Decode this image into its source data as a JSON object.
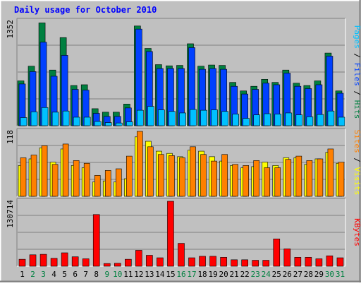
{
  "chart_data": {
    "type": "bar",
    "title": "Daily usage for October 2010",
    "categories": [
      "1",
      "2",
      "3",
      "4",
      "5",
      "6",
      "7",
      "8",
      "9",
      "10",
      "11",
      "12",
      "13",
      "14",
      "15",
      "16",
      "17",
      "18",
      "19",
      "20",
      "21",
      "22",
      "23",
      "24",
      "25",
      "26",
      "27",
      "28",
      "29",
      "30",
      "31"
    ],
    "weekend_days": [
      "2",
      "3",
      "9",
      "10",
      "16",
      "17",
      "23",
      "24",
      "30",
      "31"
    ],
    "panels": [
      {
        "id": "top",
        "ymax": 1352,
        "ymax_label": "1352",
        "axis_label_parts": [
          {
            "text": "Pages",
            "color": "#00c0ff"
          },
          {
            "text": " / ",
            "color": "#000000"
          },
          {
            "text": "Files",
            "color": "#0040ff"
          },
          {
            "text": " / ",
            "color": "#000000"
          },
          {
            "text": "Hits",
            "color": "#008040"
          }
        ],
        "series": [
          {
            "name": "Hits",
            "color": "#008040",
            "values": [
              580,
              770,
              1330,
              720,
              1140,
              520,
              530,
              220,
              175,
              175,
              280,
              1290,
              1000,
              790,
              775,
              780,
              1060,
              770,
              785,
              780,
              560,
              450,
              510,
              600,
              560,
              720,
              550,
              520,
              580,
              940,
              450
            ]
          },
          {
            "name": "Files",
            "color": "#0040ff",
            "values": [
              540,
              700,
              1080,
              640,
              910,
              470,
              460,
              160,
              120,
              120,
              230,
              1250,
              960,
              740,
              740,
              740,
              1010,
              730,
              740,
              730,
              510,
              410,
              470,
              550,
              530,
              680,
              510,
              480,
              530,
              900,
              420
            ]
          },
          {
            "name": "Pages",
            "color": "#00c0ff",
            "values": [
              105,
              180,
              235,
              175,
              190,
              110,
              110,
              55,
              40,
              35,
              50,
              200,
              250,
              205,
              185,
              165,
              210,
              200,
              205,
              185,
              150,
              95,
              140,
              155,
              150,
              165,
              140,
              115,
              145,
              190,
              110
            ]
          }
        ]
      },
      {
        "id": "middle",
        "ymax": 118,
        "ymax_label": "118",
        "axis_label_parts": [
          {
            "text": "Sites",
            "color": "#ff8000"
          },
          {
            "text": " / ",
            "color": "#000000"
          },
          {
            "text": "Visits",
            "color": "#ffff00"
          }
        ],
        "series": [
          {
            "name": "Visits",
            "color": "#ffff00",
            "values": [
              56,
              68,
              88,
              62,
              86,
              56,
              52,
              26,
              28,
              26,
              32,
              108,
              100,
              82,
              78,
              72,
              84,
              82,
              72,
              64,
              56,
              52,
              54,
              62,
              56,
              70,
              70,
              58,
              68,
              80,
              60
            ]
          },
          {
            "name": "Sites",
            "color": "#ff8000",
            "values": [
              70,
              75,
              92,
              58,
              95,
              65,
              60,
              38,
              47,
              50,
              73,
              118,
              90,
              76,
              74,
              70,
              90,
              76,
              64,
              76,
              58,
              56,
              65,
              52,
              52,
              67,
              73,
              65,
              68,
              86,
              62
            ]
          }
        ]
      },
      {
        "id": "bottom",
        "ymax": 130714,
        "ymax_label": "130714",
        "axis_label_parts": [
          {
            "text": "KBytes",
            "color": "#ff0000"
          }
        ],
        "series": [
          {
            "name": "KBytes",
            "color": "#ff0000",
            "values": [
              14000,
              23000,
              24000,
              16000,
              27000,
              19000,
              15000,
              104000,
              5500,
              6000,
              14000,
              32000,
              22000,
              17000,
              130714,
              46000,
              17000,
              20000,
              20000,
              18000,
              13000,
              13000,
              12000,
              12000,
              55000,
              35000,
              18000,
              18000,
              15000,
              21000,
              17000
            ]
          }
        ]
      }
    ]
  }
}
